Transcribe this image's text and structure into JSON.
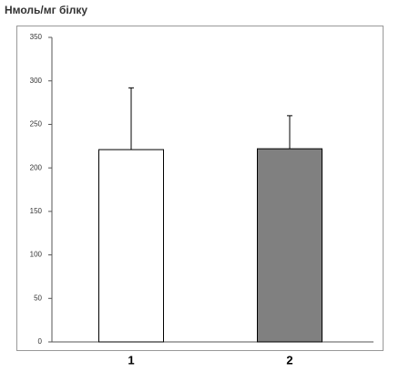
{
  "chart_data": {
    "type": "bar",
    "ylabel": "Нмоль/мг білку",
    "categories": [
      "1",
      "2"
    ],
    "values": [
      221,
      222
    ],
    "errors": [
      71,
      38
    ],
    "colors": [
      "#ffffff",
      "#808080"
    ],
    "ylim": [
      0,
      350
    ],
    "yticks": [
      0,
      50,
      100,
      150,
      200,
      250,
      300,
      350
    ],
    "grid": false
  }
}
